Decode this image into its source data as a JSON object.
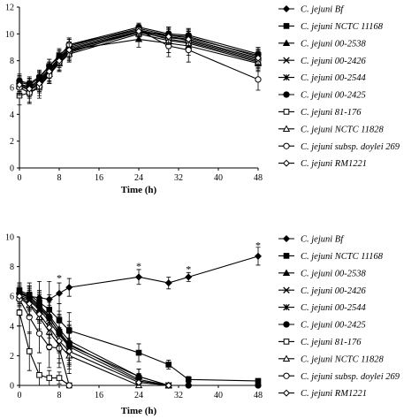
{
  "chart_data": [
    {
      "type": "line",
      "xlabel": "Time (h)",
      "ylabel": "",
      "xlim": [
        0,
        48
      ],
      "ylim": [
        0,
        12
      ],
      "xticks": [
        0,
        8,
        16,
        24,
        32,
        40,
        48
      ],
      "yticks": [
        0,
        2,
        4,
        6,
        8,
        10,
        12
      ],
      "x": [
        0,
        2,
        4,
        6,
        8,
        10,
        24,
        30,
        34,
        48
      ],
      "grid": false,
      "legend_position": "right",
      "series": [
        {
          "name": "C. jejuni Bf",
          "values": [
            6.3,
            6.0,
            6.6,
            7.4,
            8.2,
            9.0,
            10.3,
            9.8,
            9.5,
            8.1
          ],
          "error": [
            0.6,
            0.6,
            0.6,
            0.5,
            0.5,
            0.6,
            0.4,
            0.7,
            0.7,
            0.6
          ]
        },
        {
          "name": "C. jejuni NCTC 11168",
          "values": [
            6.4,
            6.2,
            6.7,
            7.6,
            8.4,
            9.1,
            10.4,
            9.9,
            9.8,
            8.3
          ],
          "error": [
            0.5,
            0.5,
            0.5,
            0.5,
            0.5,
            0.5,
            0.3,
            0.6,
            0.6,
            0.5
          ]
        },
        {
          "name": "C. jejuni 00-2538",
          "values": [
            6.2,
            6.1,
            6.5,
            7.3,
            8.1,
            8.8,
            9.6,
            9.3,
            9.1,
            7.8
          ],
          "error": [
            0.6,
            0.6,
            0.6,
            0.6,
            0.6,
            0.6,
            0.6,
            0.7,
            0.7,
            0.6
          ]
        },
        {
          "name": "C. jejuni 00-2426",
          "values": [
            6.3,
            6.0,
            6.4,
            7.2,
            8.0,
            8.9,
            10.2,
            9.9,
            9.7,
            8.4
          ],
          "error": [
            0.5,
            0.5,
            0.5,
            0.5,
            0.5,
            0.5,
            0.4,
            0.6,
            0.6,
            0.5
          ]
        },
        {
          "name": "C. jejuni 00-2544",
          "values": [
            6.2,
            5.9,
            6.3,
            7.1,
            7.9,
            8.7,
            10.1,
            9.7,
            9.6,
            8.2
          ],
          "error": [
            0.6,
            0.6,
            0.6,
            0.6,
            0.6,
            0.6,
            0.4,
            0.6,
            0.6,
            0.6
          ]
        },
        {
          "name": "C. jejuni 00-2425",
          "values": [
            6.5,
            6.3,
            6.8,
            7.6,
            8.3,
            9.2,
            10.5,
            10.0,
            9.9,
            8.5
          ],
          "error": [
            0.5,
            0.5,
            0.5,
            0.5,
            0.5,
            0.5,
            0.3,
            0.5,
            0.5,
            0.5
          ]
        },
        {
          "name": "C. jejuni 81-176",
          "values": [
            5.4,
            5.6,
            6.0,
            7.0,
            7.8,
            8.6,
            10.2,
            9.6,
            9.4,
            8.0
          ],
          "error": [
            0.7,
            0.8,
            0.8,
            0.7,
            0.6,
            0.6,
            0.4,
            0.6,
            0.6,
            0.5
          ]
        },
        {
          "name": "C. jejuni NCTC 11828",
          "values": [
            6.1,
            5.8,
            6.2,
            7.0,
            7.8,
            8.5,
            10.0,
            9.5,
            9.3,
            7.9
          ],
          "error": [
            0.6,
            0.6,
            0.6,
            0.6,
            0.6,
            0.6,
            0.4,
            0.6,
            0.6,
            0.6
          ]
        },
        {
          "name": "C. jejuni subsp. doylei 269",
          "values": [
            6.0,
            5.6,
            6.1,
            6.9,
            7.9,
            9.2,
            10.3,
            9.1,
            8.8,
            6.6
          ],
          "error": [
            0.6,
            0.7,
            0.7,
            0.6,
            0.6,
            0.5,
            0.4,
            0.8,
            0.9,
            0.8
          ]
        },
        {
          "name": "C. jejuni RM1221",
          "values": [
            6.2,
            5.9,
            6.3,
            7.2,
            8.0,
            8.8,
            10.2,
            9.8,
            9.6,
            8.2
          ],
          "error": [
            0.5,
            0.5,
            0.5,
            0.5,
            0.5,
            0.5,
            0.4,
            0.6,
            0.6,
            0.5
          ]
        }
      ]
    },
    {
      "type": "line",
      "xlabel": "Time (h)",
      "ylabel": "",
      "xlim": [
        0,
        48
      ],
      "ylim": [
        0,
        10
      ],
      "xticks": [
        0,
        8,
        16,
        24,
        32,
        40,
        48
      ],
      "yticks": [
        0,
        2,
        4,
        6,
        8,
        10
      ],
      "grid": false,
      "legend_position": "right",
      "annotations": [
        {
          "text": "*",
          "x": 8,
          "y": 7.0
        },
        {
          "text": "*",
          "x": 24,
          "y": 7.8
        },
        {
          "text": "*",
          "x": 34,
          "y": 7.6
        },
        {
          "text": "*",
          "x": 48,
          "y": 9.2
        }
      ],
      "series": [
        {
          "name": "C. jejuni Bf",
          "x": [
            0,
            2,
            4,
            6,
            8,
            10,
            24,
            30,
            34,
            48
          ],
          "values": [
            6.2,
            6.0,
            5.9,
            5.8,
            6.2,
            6.6,
            7.3,
            6.9,
            7.3,
            8.7
          ],
          "error": [
            0.7,
            0.9,
            1.1,
            1.2,
            0.7,
            0.6,
            0.5,
            0.4,
            0.3,
            0.6
          ]
        },
        {
          "name": "C. jejuni NCTC 11168",
          "x": [
            0,
            2,
            4,
            6,
            8,
            10,
            24,
            30,
            34,
            48
          ],
          "values": [
            6.4,
            6.1,
            5.6,
            5.1,
            4.4,
            3.7,
            2.2,
            1.4,
            0.4,
            0.3
          ],
          "error": [
            0.5,
            0.6,
            0.8,
            1.0,
            1.1,
            1.2,
            0.6,
            0.3,
            0.2,
            0.1
          ]
        },
        {
          "name": "C. jejuni 00-2538",
          "x": [
            0,
            2,
            4,
            6,
            8,
            10,
            24,
            30
          ],
          "values": [
            6.3,
            6.0,
            5.4,
            4.7,
            3.8,
            3.0,
            0.6,
            0.0
          ],
          "error": [
            0.6,
            0.7,
            0.9,
            1.1,
            1.2,
            1.3,
            0.5,
            0.0
          ]
        },
        {
          "name": "C. jejuni 00-2426",
          "x": [
            0,
            2,
            4,
            6,
            8,
            10,
            24,
            30
          ],
          "values": [
            6.1,
            5.8,
            5.2,
            4.5,
            3.6,
            2.8,
            0.4,
            0.0
          ],
          "error": [
            0.6,
            0.7,
            0.9,
            1.1,
            1.2,
            1.3,
            0.4,
            0.0
          ]
        },
        {
          "name": "C. jejuni 00-2544",
          "x": [
            0,
            2,
            4,
            6,
            8,
            10,
            24,
            30
          ],
          "values": [
            6.0,
            5.7,
            5.1,
            4.3,
            3.4,
            2.6,
            0.3,
            0.0
          ],
          "error": [
            0.6,
            0.7,
            0.9,
            1.1,
            1.2,
            1.3,
            0.4,
            0.0
          ]
        },
        {
          "name": "C. jejuni 00-2425",
          "x": [
            0,
            2,
            4,
            6,
            8,
            10,
            24,
            30,
            34,
            48
          ],
          "values": [
            6.2,
            5.9,
            5.3,
            4.6,
            3.5,
            2.7,
            0.6,
            0.0,
            0.0,
            0.0
          ],
          "error": [
            0.6,
            0.7,
            0.9,
            1.1,
            1.2,
            1.3,
            0.5,
            0.0,
            0.0,
            0.0
          ]
        },
        {
          "name": "C. jejuni 81-176",
          "x": [
            0,
            2,
            4,
            6,
            8,
            10
          ],
          "values": [
            4.9,
            2.3,
            0.7,
            0.5,
            0.5,
            0.0
          ],
          "error": [
            0.9,
            1.3,
            0.8,
            0.5,
            0.4,
            0.0
          ]
        },
        {
          "name": "C. jejuni NCTC 11828",
          "x": [
            0,
            2,
            4,
            6,
            8,
            10,
            24,
            30
          ],
          "values": [
            5.9,
            5.4,
            4.6,
            3.6,
            2.7,
            2.0,
            0.0,
            0.0
          ],
          "error": [
            0.6,
            0.8,
            1.0,
            1.2,
            1.2,
            1.2,
            0.0,
            0.0
          ]
        },
        {
          "name": "C. jejuni subsp. doylei 269",
          "x": [
            0,
            2,
            4,
            6,
            8,
            10
          ],
          "values": [
            5.8,
            4.6,
            3.5,
            2.6,
            2.5,
            0.0
          ],
          "error": [
            0.7,
            1.1,
            1.3,
            1.4,
            1.3,
            0.0
          ]
        },
        {
          "name": "C. jejuni RM1221",
          "x": [
            0,
            2,
            4,
            6,
            8,
            10,
            24,
            30
          ],
          "values": [
            6.0,
            5.5,
            4.8,
            3.9,
            3.0,
            2.3,
            0.2,
            0.0
          ],
          "error": [
            0.6,
            0.8,
            1.0,
            1.2,
            1.2,
            1.2,
            0.3,
            0.0
          ]
        }
      ]
    }
  ]
}
